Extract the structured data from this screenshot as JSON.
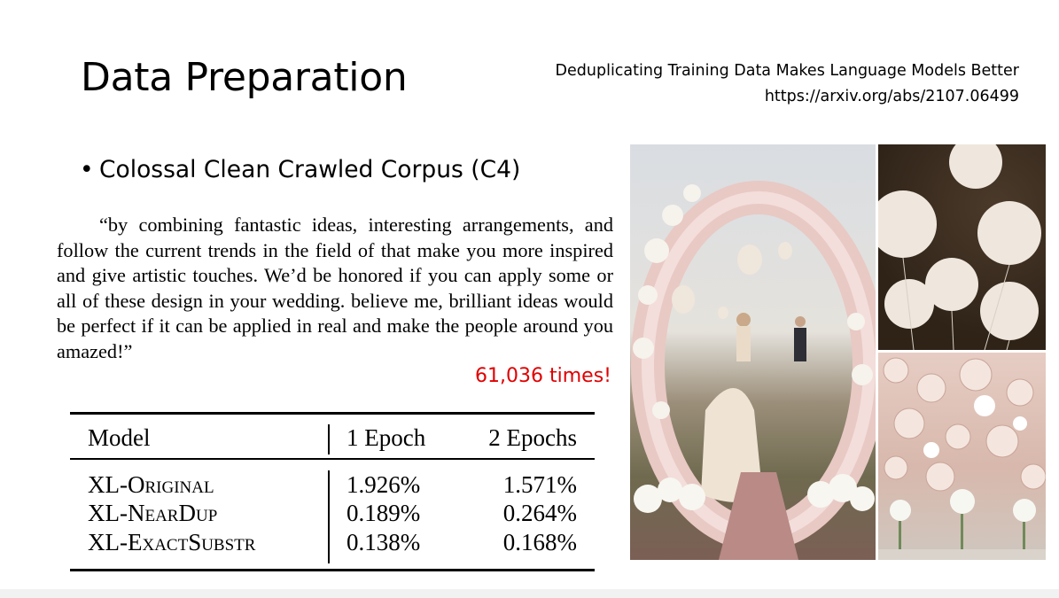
{
  "slide": {
    "title": "Data Preparation",
    "reference": {
      "paper_title": "Deduplicating Training Data Makes Language Models Better",
      "url": "https://arxiv.org/abs/2107.06499"
    },
    "bullet": "Colossal Clean Crawled Corpus (C4)",
    "quote": "“by combining fantastic ideas, interesting arrangements, and follow the current trends in the field of that make you more inspired and give artistic touches. We’d be honored if you can apply some or all of these design in your wedding. believe me, brilliant ideas would be perfect if it can be applied in real and make the people around you amazed!”",
    "repeat_count": "61,036 times!",
    "repeat_count_color": "#e00000",
    "table": {
      "headers": [
        "Model",
        "1 Epoch",
        "2 Epochs"
      ],
      "rows": [
        [
          "XL-Original",
          "1.926%",
          "1.571%"
        ],
        [
          "XL-NearDup",
          "0.189%",
          "0.264%"
        ],
        [
          "XL-ExactSubstr",
          "0.138%",
          "0.168%"
        ]
      ]
    },
    "images": [
      {
        "icon": "wedding-arch-photo"
      },
      {
        "icon": "white-balloons-photo"
      },
      {
        "icon": "paper-petal-wall-photo"
      }
    ]
  }
}
